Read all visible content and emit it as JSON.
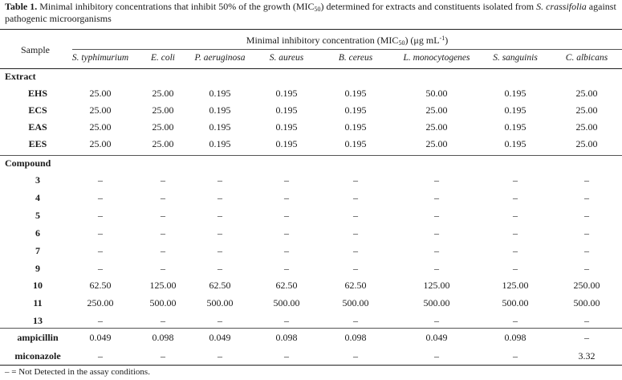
{
  "caption": {
    "label": "Table 1.",
    "text_a": " Minimal inhibitory concentrations that inhibit 50% of the growth (MIC",
    "text_a_sub": "50",
    "text_b": ") determined for extracts and constituents isolated from ",
    "species": "S. crassifolia",
    "text_c": " against pathogenic microorganisms"
  },
  "header": {
    "sample": "Sample",
    "group_a": "Minimal inhibitory concentration (MIC",
    "group_sub": "50",
    "group_b": ") (μg mL",
    "group_sup": "-1",
    "group_c": ")"
  },
  "organisms": [
    "S. typhimurium",
    "E. coli",
    "P. aeruginosa",
    "S. aureus",
    "B. cereus",
    "L. monocytogenes",
    "S. sanguinis",
    "C. albicans"
  ],
  "sections": {
    "extract": "Extract",
    "compound": "Compound"
  },
  "extract_rows": [
    {
      "label": "EHS",
      "values": [
        "25.00",
        "25.00",
        "0.195",
        "0.195",
        "0.195",
        "50.00",
        "0.195",
        "25.00"
      ]
    },
    {
      "label": "ECS",
      "values": [
        "25.00",
        "25.00",
        "0.195",
        "0.195",
        "0.195",
        "25.00",
        "0.195",
        "25.00"
      ]
    },
    {
      "label": "EAS",
      "values": [
        "25.00",
        "25.00",
        "0.195",
        "0.195",
        "0.195",
        "25.00",
        "0.195",
        "25.00"
      ]
    },
    {
      "label": "EES",
      "values": [
        "25.00",
        "25.00",
        "0.195",
        "0.195",
        "0.195",
        "25.00",
        "0.195",
        "25.00"
      ]
    }
  ],
  "compound_rows": [
    {
      "label": "3",
      "values": [
        "–",
        "–",
        "–",
        "–",
        "–",
        "–",
        "–",
        "–"
      ]
    },
    {
      "label": "4",
      "values": [
        "–",
        "–",
        "–",
        "–",
        "–",
        "–",
        "–",
        "–"
      ]
    },
    {
      "label": "5",
      "values": [
        "–",
        "–",
        "–",
        "–",
        "–",
        "–",
        "–",
        "–"
      ]
    },
    {
      "label": "6",
      "values": [
        "–",
        "–",
        "–",
        "–",
        "–",
        "–",
        "–",
        "–"
      ]
    },
    {
      "label": "7",
      "values": [
        "–",
        "–",
        "–",
        "–",
        "–",
        "–",
        "–",
        "–"
      ]
    },
    {
      "label": "9",
      "values": [
        "–",
        "–",
        "–",
        "–",
        "–",
        "–",
        "–",
        "–"
      ]
    },
    {
      "label": "10",
      "values": [
        "62.50",
        "125.00",
        "62.50",
        "62.50",
        "62.50",
        "125.00",
        "125.00",
        "250.00"
      ]
    },
    {
      "label": "11",
      "values": [
        "250.00",
        "500.00",
        "500.00",
        "500.00",
        "500.00",
        "500.00",
        "500.00",
        "500.00"
      ]
    },
    {
      "label": "13",
      "values": [
        "–",
        "–",
        "–",
        "–",
        "–",
        "–",
        "–",
        "–"
      ]
    }
  ],
  "control_rows": [
    {
      "label": "ampicillin",
      "values": [
        "0.049",
        "0.098",
        "0.049",
        "0.098",
        "0.098",
        "0.049",
        "0.098",
        "–"
      ]
    },
    {
      "label": "miconazole",
      "values": [
        "–",
        "–",
        "–",
        "–",
        "–",
        "–",
        "–",
        "3.32"
      ]
    }
  ],
  "footnote": "– = Not Detected in the assay conditions."
}
